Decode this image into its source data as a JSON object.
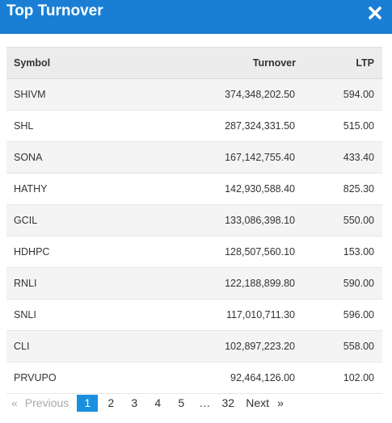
{
  "modal": {
    "title": "Top Turnover",
    "close_icon": "close-icon"
  },
  "table": {
    "headers": {
      "symbol": "Symbol",
      "turnover": "Turnover",
      "ltp": "LTP"
    },
    "rows": [
      {
        "symbol": "SHIVM",
        "turnover": "374,348,202.50",
        "ltp": "594.00"
      },
      {
        "symbol": "SHL",
        "turnover": "287,324,331.50",
        "ltp": "515.00"
      },
      {
        "symbol": "SONA",
        "turnover": "167,142,755.40",
        "ltp": "433.40"
      },
      {
        "symbol": "HATHY",
        "turnover": "142,930,588.40",
        "ltp": "825.30"
      },
      {
        "symbol": "GCIL",
        "turnover": "133,086,398.10",
        "ltp": "550.00"
      },
      {
        "symbol": "HDHPC",
        "turnover": "128,507,560.10",
        "ltp": "153.00"
      },
      {
        "symbol": "RNLI",
        "turnover": "122,188,899.80",
        "ltp": "590.00"
      },
      {
        "symbol": "SNLI",
        "turnover": "117,010,711.30",
        "ltp": "596.00"
      },
      {
        "symbol": "CLI",
        "turnover": "102,897,223.20",
        "ltp": "558.00"
      },
      {
        "symbol": "PRVUPO",
        "turnover": "92,464,126.00",
        "ltp": "102.00"
      }
    ]
  },
  "pagination": {
    "prev_arrow": "«",
    "prev_label": "Previous",
    "pages": [
      "1",
      "2",
      "3",
      "4",
      "5",
      "…",
      "32"
    ],
    "active_page": "1",
    "next_label": "Next",
    "next_arrow": "»"
  },
  "colors": {
    "header_bg": "#1a7fd4",
    "active_page_bg": "#1a8fe0"
  }
}
